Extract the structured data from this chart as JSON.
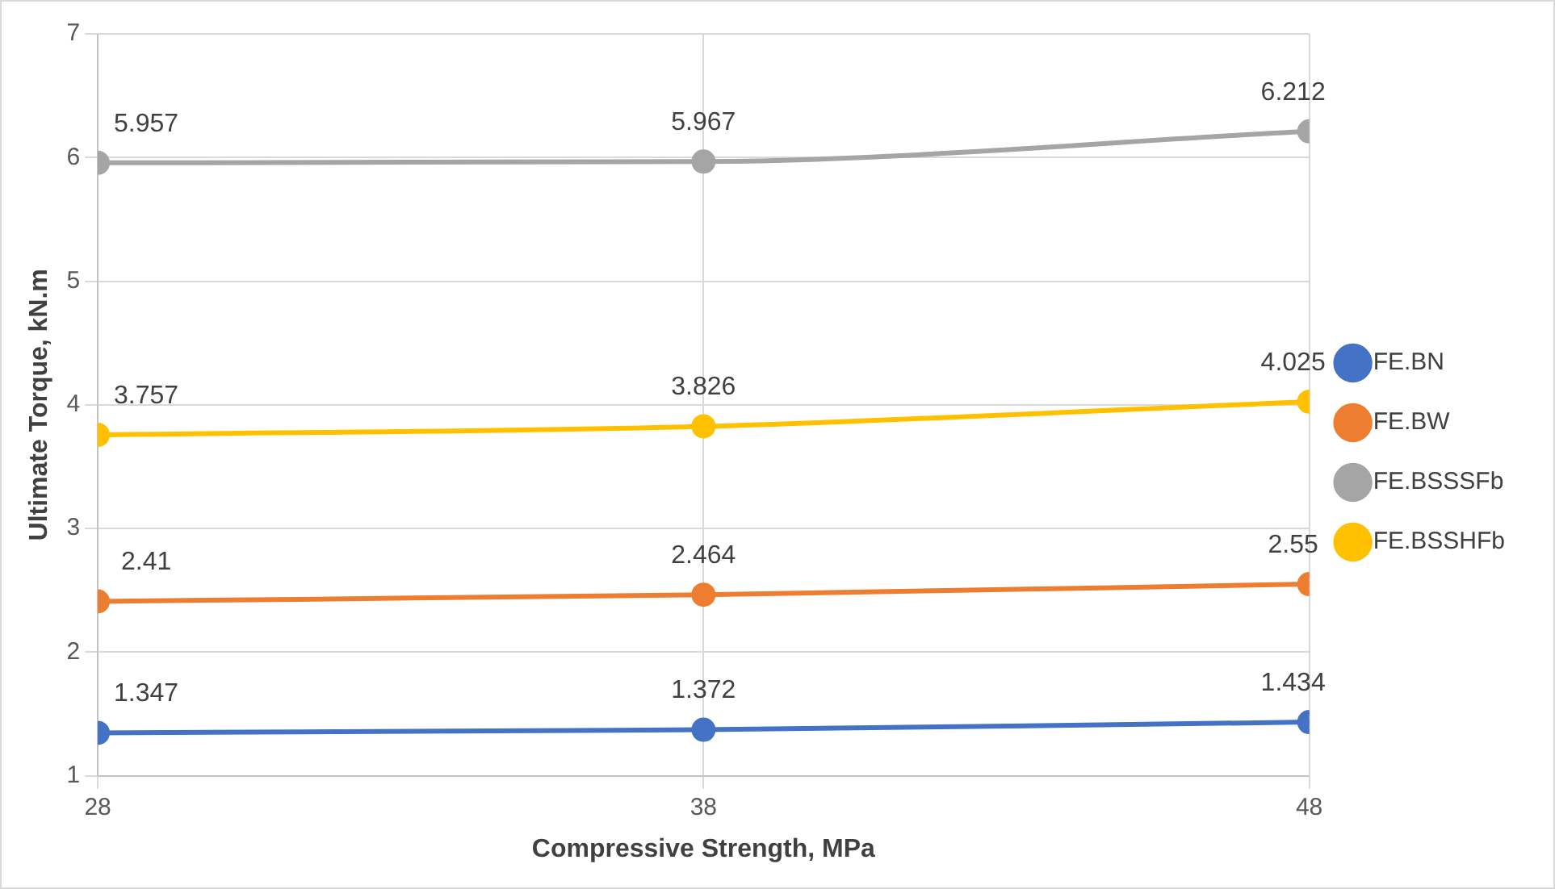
{
  "chart_data": {
    "type": "line",
    "xlabel": "Compressive Strength, MPa",
    "ylabel": "Ultimate Torque, kN.m",
    "x": [
      28,
      38,
      48
    ],
    "xlim": [
      28,
      48
    ],
    "xticks": [
      28,
      38,
      48
    ],
    "ylim": [
      1,
      7
    ],
    "yticks": [
      1,
      2,
      3,
      4,
      5,
      6,
      7
    ],
    "series": [
      {
        "name": "FE.BN",
        "color": "#4472c4",
        "values": [
          1.347,
          1.372,
          1.434
        ]
      },
      {
        "name": "FE.BW",
        "color": "#ed7d31",
        "values": [
          2.41,
          2.464,
          2.55
        ]
      },
      {
        "name": "FE.BSSSFb",
        "color": "#a5a5a5",
        "values": [
          5.957,
          5.967,
          6.212
        ]
      },
      {
        "name": "FE.BSSHFb",
        "color": "#ffc000",
        "values": [
          3.757,
          3.826,
          4.025
        ]
      }
    ],
    "grid": true,
    "legend": "right",
    "marker": "circle",
    "line_style": "solid",
    "data_labels": true
  }
}
